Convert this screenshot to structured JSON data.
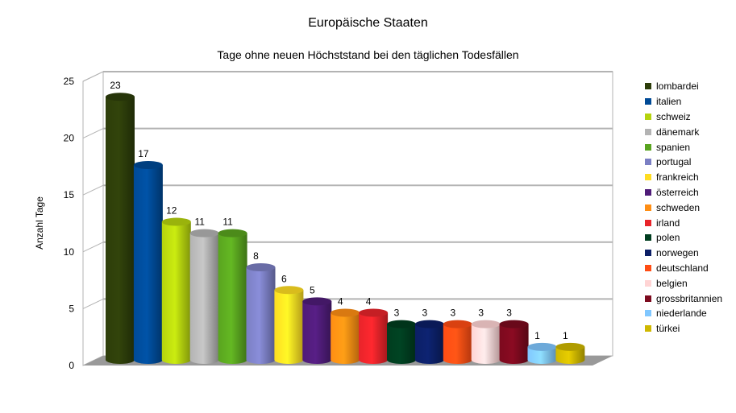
{
  "chart_data": {
    "type": "bar",
    "title": "Europäische Staaten",
    "subtitle": "Tage ohne neuen Höchststand bei den täglichen Todesfällen",
    "xlabel": "",
    "ylabel": "Anzahl Tage",
    "ylim": [
      0,
      25
    ],
    "yticks": [
      "0",
      "5",
      "10",
      "15",
      "20",
      "25"
    ],
    "grid": true,
    "legend_position": "right",
    "categories": [
      "lombardei",
      "italien",
      "schweiz",
      "dänemark",
      "spanien",
      "portugal",
      "frankreich",
      "österreich",
      "schweden",
      "irland",
      "polen",
      "norwegen",
      "deutschland",
      "belgien",
      "grossbritannien",
      "niederlande",
      "türkei"
    ],
    "values": [
      23,
      17,
      12,
      11,
      11,
      8,
      6,
      5,
      4,
      4,
      3,
      3,
      3,
      3,
      3,
      1,
      1
    ],
    "colors": [
      "#2d3d0a",
      "#004a96",
      "#b5d30e",
      "#b3b3b3",
      "#59a41f",
      "#7b7fc3",
      "#ffdd22",
      "#4f1c78",
      "#ff8e14",
      "#e8242a",
      "#003d1f",
      "#0c1f66",
      "#ff4d14",
      "#ffd4d4",
      "#7c0a1e",
      "#80c7ff",
      "#cfb800"
    ]
  }
}
